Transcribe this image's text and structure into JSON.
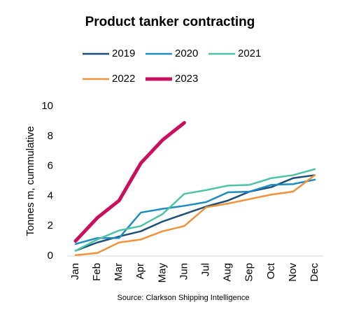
{
  "chart_data": {
    "type": "line",
    "title": "Product tanker contracting",
    "y_label": "Tonnes m, cummulative",
    "source": "Source: Clarkson Shipping Intelligence",
    "categories": [
      "Jan",
      "Feb",
      "Mar",
      "Apr",
      "May",
      "Jun",
      "Jul",
      "Aug",
      "Sep",
      "Oct",
      "Nov",
      "Dec"
    ],
    "series": [
      {
        "name": "2019",
        "color": "#1c4e78",
        "width": 2.5,
        "values": [
          0.35,
          0.9,
          1.3,
          1.65,
          2.3,
          2.8,
          3.3,
          3.7,
          4.3,
          4.6,
          5.2,
          5.4
        ]
      },
      {
        "name": "2020",
        "color": "#1e8dbd",
        "width": 2.5,
        "values": [
          0.8,
          1.2,
          1.2,
          2.9,
          3.15,
          3.35,
          3.6,
          4.25,
          4.3,
          4.75,
          4.8,
          5.1
        ]
      },
      {
        "name": "2021",
        "color": "#4ec2a7",
        "width": 2.5,
        "values": [
          0.35,
          1.1,
          1.7,
          2.0,
          2.8,
          4.15,
          4.4,
          4.7,
          4.75,
          5.2,
          5.4,
          5.8
        ]
      },
      {
        "name": "2022",
        "color": "#f0923a",
        "width": 2.5,
        "values": [
          0.05,
          0.2,
          0.9,
          1.1,
          1.65,
          2.0,
          3.25,
          3.5,
          3.8,
          4.1,
          4.3,
          5.4
        ]
      },
      {
        "name": "2023",
        "color": "#c8105f",
        "width": 5,
        "values": [
          1.0,
          2.55,
          3.7,
          6.2,
          7.75,
          8.9,
          null,
          null,
          null,
          null,
          null,
          null
        ]
      }
    ],
    "ylim": [
      0,
      10
    ],
    "yticks": [
      0,
      2,
      4,
      6,
      8,
      10
    ],
    "grid": false
  }
}
